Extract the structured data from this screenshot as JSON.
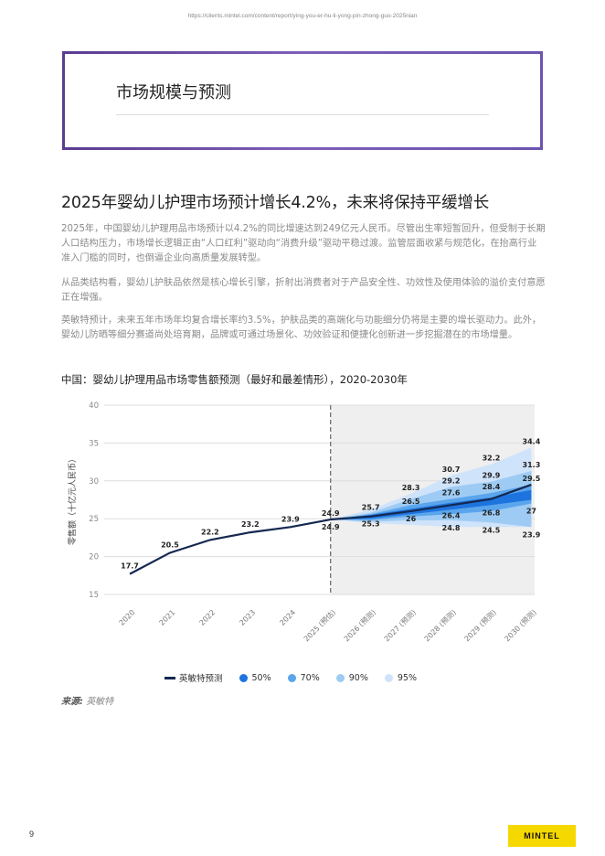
{
  "header": {
    "url": "https://clients.mintel.com/content/report/ying-you-er-hu-li-yong-pin-zhong-guo-2025nian"
  },
  "section": {
    "title": "市场规模与预测"
  },
  "headline": "2025年婴幼儿护理市场预计增长4.2%，未来将保持平缓增长",
  "paragraphs": [
    "2025年，中国婴幼儿护理用品市场预计以4.2%的同比增速达到249亿元人民币。尽管出生率短暂回升，但受制于长期人口结构压力，市场增长逻辑正由“人口红利”驱动向“消费升级”驱动平稳过渡。监管层面收紧与规范化，在抬高行业准入门槛的同时，也倒逼企业向高质量发展转型。",
    "从品类结构看，婴幼儿护肤品依然是核心增长引擎，折射出消费者对于产品安全性、功效性及使用体验的溢价支付意愿正在增强。",
    "英敏特预计，未来五年市场年均复合增长率约3.5%，护肤品类的高端化与功能细分仍将是主要的增长驱动力。此外，婴幼儿防晒等细分赛道尚处培育期，品牌或可通过场景化、功效验证和便捷化创新进一步挖掘潜在的市场增量。"
  ],
  "chart_title": "中国：婴幼儿护理用品市场零售额预测（最好和最差情形），2020-2030年",
  "chart_data": {
    "type": "area",
    "title": "中国：婴幼儿护理用品市场零售额预测（最好和最差情形），2020-2030年",
    "ylabel": "零售额（十亿元人民币）",
    "ylim": [
      15,
      40
    ],
    "yticks": [
      15,
      20,
      25,
      30,
      35,
      40
    ],
    "grid": true,
    "categories": [
      "2020",
      "2021",
      "2022",
      "2023",
      "2024",
      "2025 (预估)",
      "2026 (预测)",
      "2027 (预测)",
      "2028 (预测)",
      "2029 (预测)",
      "2030 (预测)"
    ],
    "actual": {
      "name": "英敏特预测",
      "color": "#142850",
      "values": [
        17.7,
        20.5,
        22.2,
        23.2,
        23.9,
        24.9
      ],
      "labels": [
        "17.7",
        "20.5",
        "22.2",
        "23.2",
        "23.9",
        "24.9"
      ]
    },
    "forecast": {
      "name": "英敏特预测",
      "values": [
        24.9,
        25.3,
        26.0,
        26.8,
        27.6,
        29.5
      ]
    },
    "bands": [
      {
        "name": "95%",
        "color": "#cfe3fa",
        "lower": [
          24.9,
          24.4,
          24.2,
          23.9,
          23.9,
          23.9
        ],
        "upper": [
          24.9,
          26.2,
          28.3,
          30.7,
          32.2,
          34.4
        ]
      },
      {
        "name": "90%",
        "color": "#9ecbf4",
        "lower": [
          24.9,
          24.6,
          24.8,
          24.8,
          24.5,
          23.9
        ],
        "upper": [
          24.9,
          25.8,
          27.6,
          29.2,
          29.9,
          31.3
        ]
      },
      {
        "name": "70%",
        "color": "#5aa5ec",
        "lower": [
          24.9,
          24.8,
          25.3,
          25.6,
          26.0,
          27.0
        ],
        "upper": [
          24.9,
          25.6,
          26.8,
          27.6,
          28.4,
          29.5
        ]
      },
      {
        "name": "50%",
        "color": "#1e74de",
        "lower": [
          24.9,
          25.0,
          25.6,
          26.2,
          26.8,
          27.5
        ],
        "upper": [
          24.9,
          25.5,
          26.3,
          27.1,
          27.8,
          28.8
        ]
      }
    ],
    "forecast_labels": [
      {
        "i": 5,
        "v": 24.9,
        "text": "24.9",
        "pos": "above"
      },
      {
        "i": 5,
        "v": 24.9,
        "text": "24.9",
        "pos": "below"
      },
      {
        "i": 6,
        "v": 25.7,
        "text": "25.7",
        "pos": "above"
      },
      {
        "i": 6,
        "v": 25.3,
        "text": "25.3",
        "pos": "below"
      },
      {
        "i": 7,
        "v": 28.3,
        "text": "28.3",
        "pos": "above"
      },
      {
        "i": 7,
        "v": 26.5,
        "text": "26.5",
        "pos": "above"
      },
      {
        "i": 7,
        "v": 26.0,
        "text": "26",
        "pos": "below"
      },
      {
        "i": 8,
        "v": 30.7,
        "text": "30.7",
        "pos": "above"
      },
      {
        "i": 8,
        "v": 29.2,
        "text": "29.2",
        "pos": "above"
      },
      {
        "i": 8,
        "v": 27.6,
        "text": "27.6",
        "pos": "above"
      },
      {
        "i": 8,
        "v": 26.4,
        "text": "26.4",
        "pos": "below"
      },
      {
        "i": 8,
        "v": 24.8,
        "text": "24.8",
        "pos": "below"
      },
      {
        "i": 9,
        "v": 32.2,
        "text": "32.2",
        "pos": "above"
      },
      {
        "i": 9,
        "v": 29.9,
        "text": "29.9",
        "pos": "above"
      },
      {
        "i": 9,
        "v": 28.4,
        "text": "28.4",
        "pos": "above"
      },
      {
        "i": 9,
        "v": 26.8,
        "text": "26.8",
        "pos": "below"
      },
      {
        "i": 9,
        "v": 24.5,
        "text": "24.5",
        "pos": "below"
      },
      {
        "i": 10,
        "v": 34.4,
        "text": "34.4",
        "pos": "above"
      },
      {
        "i": 10,
        "v": 31.3,
        "text": "31.3",
        "pos": "above"
      },
      {
        "i": 10,
        "v": 29.5,
        "text": "29.5",
        "pos": "above"
      },
      {
        "i": 10,
        "v": 27.0,
        "text": "27",
        "pos": "below"
      },
      {
        "i": 10,
        "v": 23.9,
        "text": "23.9",
        "pos": "below"
      }
    ],
    "legend": [
      {
        "name": "英敏特预测",
        "type": "line",
        "color": "#142850"
      },
      {
        "name": "50%",
        "type": "dot",
        "color": "#1e74de"
      },
      {
        "name": "70%",
        "type": "dot",
        "color": "#5aa5ec"
      },
      {
        "name": "90%",
        "type": "dot",
        "color": "#9ecbf4"
      },
      {
        "name": "95%",
        "type": "dot",
        "color": "#cfe3fa"
      }
    ],
    "legend_position": "bottom"
  },
  "source": {
    "label": "来源:",
    "value": "英敏特"
  },
  "footer": {
    "page": "9",
    "logo": "MINTEL"
  }
}
